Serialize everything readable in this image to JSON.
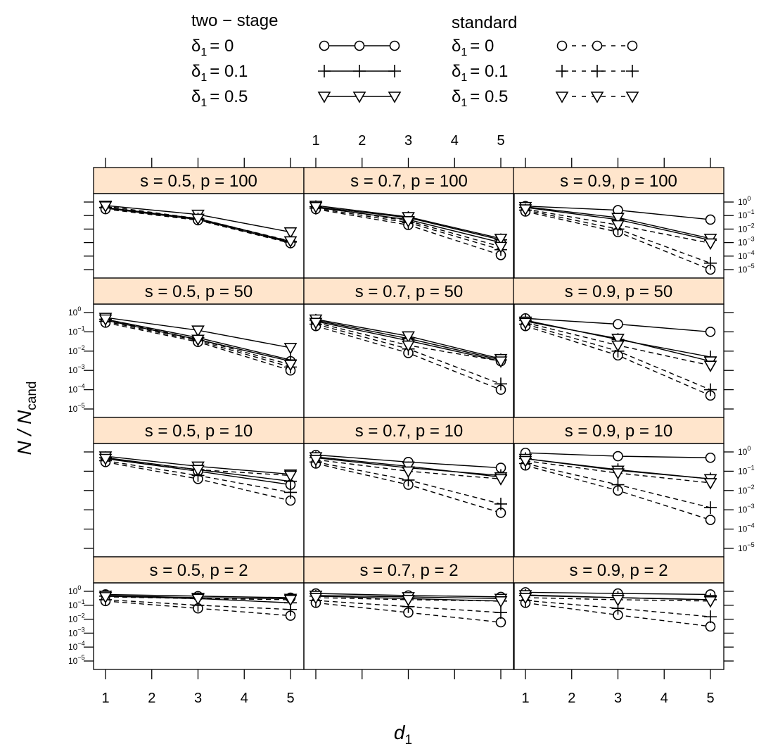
{
  "chart_data": {
    "type": "line",
    "xlabel": "d",
    "xlabel_sub": "1",
    "ylabel": "N / N",
    "ylabel_sub": "cand",
    "y_scale": "log10",
    "ylim_log10": [
      -5,
      0
    ],
    "xlim": [
      1,
      5
    ],
    "x_ticks": [
      1,
      2,
      3,
      4,
      5
    ],
    "y_tick_exponents": [
      0,
      -1,
      -2,
      -3,
      -4,
      -5
    ],
    "y_tick_base": "10",
    "x": [
      1,
      3,
      5
    ],
    "legend": {
      "headers": [
        "two − stage",
        "standard"
      ],
      "entries": [
        {
          "label": "δ",
          "sub": "1",
          "value": "= 0",
          "marker": "circle",
          "method": "two-stage",
          "style": "solid"
        },
        {
          "label": "δ",
          "sub": "1",
          "value": "= 0.1",
          "marker": "plus",
          "method": "two-stage",
          "style": "solid"
        },
        {
          "label": "δ",
          "sub": "1",
          "value": "= 0.5",
          "marker": "triangle-down",
          "method": "two-stage",
          "style": "solid"
        },
        {
          "label": "δ",
          "sub": "1",
          "value": "= 0",
          "marker": "circle",
          "method": "standard",
          "style": "dashed"
        },
        {
          "label": "δ",
          "sub": "1",
          "value": "= 0.1",
          "marker": "plus",
          "method": "standard",
          "style": "dashed"
        },
        {
          "label": "δ",
          "sub": "1",
          "value": "= 0.5",
          "marker": "triangle-down",
          "method": "standard",
          "style": "dashed"
        }
      ]
    },
    "colors": {
      "strip": "#ffe5cc",
      "line": "#000000"
    },
    "panels": [
      {
        "title": "s = 0.5, p = 100",
        "series": [
          {
            "method": "two-stage",
            "delta": 0,
            "marker": "circle",
            "values": [
              0.35,
              0.05,
              0.001
            ]
          },
          {
            "method": "two-stage",
            "delta": 0.1,
            "marker": "plus",
            "values": [
              0.4,
              0.06,
              0.0012
            ]
          },
          {
            "method": "two-stage",
            "delta": 0.5,
            "marker": "triangle-down",
            "values": [
              0.55,
              0.12,
              0.006
            ]
          },
          {
            "method": "standard",
            "delta": 0,
            "marker": "circle",
            "values": [
              0.3,
              0.045,
              0.0009
            ]
          },
          {
            "method": "standard",
            "delta": 0.1,
            "marker": "plus",
            "values": [
              0.38,
              0.055,
              0.0011
            ]
          },
          {
            "method": "standard",
            "delta": 0.5,
            "marker": "triangle-down",
            "values": [
              0.5,
              0.06,
              0.0013
            ]
          }
        ]
      },
      {
        "title": "s = 0.7, p = 100",
        "series": [
          {
            "method": "two-stage",
            "delta": 0,
            "marker": "circle",
            "values": [
              0.4,
              0.05,
              0.001
            ]
          },
          {
            "method": "two-stage",
            "delta": 0.1,
            "marker": "plus",
            "values": [
              0.45,
              0.07,
              0.0016
            ]
          },
          {
            "method": "two-stage",
            "delta": 0.5,
            "marker": "triangle-down",
            "values": [
              0.55,
              0.08,
              0.002
            ]
          },
          {
            "method": "standard",
            "delta": 0,
            "marker": "circle",
            "values": [
              0.3,
              0.02,
              0.00012
            ]
          },
          {
            "method": "standard",
            "delta": 0.1,
            "marker": "plus",
            "values": [
              0.35,
              0.03,
              0.0003
            ]
          },
          {
            "method": "standard",
            "delta": 0.5,
            "marker": "triangle-down",
            "values": [
              0.45,
              0.04,
              0.0005
            ]
          }
        ]
      },
      {
        "title": "s = 0.9, p = 100",
        "series": [
          {
            "method": "two-stage",
            "delta": 0,
            "marker": "circle",
            "values": [
              0.5,
              0.25,
              0.05
            ]
          },
          {
            "method": "two-stage",
            "delta": 0.1,
            "marker": "plus",
            "values": [
              0.4,
              0.05,
              0.0015
            ]
          },
          {
            "method": "two-stage",
            "delta": 0.5,
            "marker": "triangle-down",
            "values": [
              0.45,
              0.07,
              0.002
            ]
          },
          {
            "method": "standard",
            "delta": 0,
            "marker": "circle",
            "values": [
              0.2,
              0.006,
              1e-05
            ]
          },
          {
            "method": "standard",
            "delta": 0.1,
            "marker": "plus",
            "values": [
              0.25,
              0.01,
              3e-05
            ]
          },
          {
            "method": "standard",
            "delta": 0.5,
            "marker": "triangle-down",
            "values": [
              0.3,
              0.02,
              0.0009
            ]
          }
        ]
      },
      {
        "title": "s = 0.5, p = 50",
        "series": [
          {
            "method": "two-stage",
            "delta": 0,
            "marker": "circle",
            "values": [
              0.4,
              0.04,
              0.003
            ]
          },
          {
            "method": "two-stage",
            "delta": 0.1,
            "marker": "plus",
            "values": [
              0.45,
              0.05,
              0.0035
            ]
          },
          {
            "method": "two-stage",
            "delta": 0.5,
            "marker": "triangle-down",
            "values": [
              0.55,
              0.12,
              0.015
            ]
          },
          {
            "method": "standard",
            "delta": 0,
            "marker": "circle",
            "values": [
              0.3,
              0.03,
              0.001
            ]
          },
          {
            "method": "standard",
            "delta": 0.1,
            "marker": "plus",
            "values": [
              0.35,
              0.035,
              0.0015
            ]
          },
          {
            "method": "standard",
            "delta": 0.5,
            "marker": "triangle-down",
            "values": [
              0.45,
              0.04,
              0.002
            ]
          }
        ]
      },
      {
        "title": "s = 0.7, p = 50",
        "series": [
          {
            "method": "two-stage",
            "delta": 0,
            "marker": "circle",
            "values": [
              0.35,
              0.035,
              0.003
            ]
          },
          {
            "method": "two-stage",
            "delta": 0.1,
            "marker": "plus",
            "values": [
              0.4,
              0.045,
              0.0035
            ]
          },
          {
            "method": "two-stage",
            "delta": 0.5,
            "marker": "triangle-down",
            "values": [
              0.45,
              0.06,
              0.004
            ]
          },
          {
            "method": "standard",
            "delta": 0,
            "marker": "circle",
            "values": [
              0.2,
              0.008,
              0.0001
            ]
          },
          {
            "method": "standard",
            "delta": 0.1,
            "marker": "plus",
            "values": [
              0.25,
              0.013,
              0.0002
            ]
          },
          {
            "method": "standard",
            "delta": 0.5,
            "marker": "triangle-down",
            "values": [
              0.3,
              0.02,
              0.003
            ]
          }
        ]
      },
      {
        "title": "s = 0.9, p = 50",
        "series": [
          {
            "method": "two-stage",
            "delta": 0,
            "marker": "circle",
            "values": [
              0.5,
              0.25,
              0.1
            ]
          },
          {
            "method": "two-stage",
            "delta": 0.1,
            "marker": "plus",
            "values": [
              0.4,
              0.04,
              0.005
            ]
          },
          {
            "method": "two-stage",
            "delta": 0.5,
            "marker": "triangle-down",
            "values": [
              0.35,
              0.045,
              0.003
            ]
          },
          {
            "method": "standard",
            "delta": 0,
            "marker": "circle",
            "values": [
              0.2,
              0.006,
              5e-05
            ]
          },
          {
            "method": "standard",
            "delta": 0.1,
            "marker": "plus",
            "values": [
              0.25,
              0.01,
              0.0001
            ]
          },
          {
            "method": "standard",
            "delta": 0.5,
            "marker": "triangle-down",
            "values": [
              0.3,
              0.02,
              0.0018
            ]
          }
        ]
      },
      {
        "title": "s = 0.5, p = 10",
        "series": [
          {
            "method": "two-stage",
            "delta": 0,
            "marker": "circle",
            "values": [
              0.45,
              0.1,
              0.02
            ]
          },
          {
            "method": "two-stage",
            "delta": 0.1,
            "marker": "plus",
            "values": [
              0.5,
              0.12,
              0.03
            ]
          },
          {
            "method": "two-stage",
            "delta": 0.5,
            "marker": "triangle-down",
            "values": [
              0.6,
              0.18,
              0.07
            ]
          },
          {
            "method": "standard",
            "delta": 0,
            "marker": "circle",
            "values": [
              0.3,
              0.04,
              0.003
            ]
          },
          {
            "method": "standard",
            "delta": 0.1,
            "marker": "plus",
            "values": [
              0.35,
              0.06,
              0.008
            ]
          },
          {
            "method": "standard",
            "delta": 0.5,
            "marker": "triangle-down",
            "values": [
              0.45,
              0.12,
              0.06
            ]
          }
        ]
      },
      {
        "title": "s = 0.7, p = 10",
        "series": [
          {
            "method": "two-stage",
            "delta": 0,
            "marker": "circle",
            "values": [
              0.7,
              0.3,
              0.15
            ]
          },
          {
            "method": "two-stage",
            "delta": 0.1,
            "marker": "plus",
            "values": [
              0.5,
              0.15,
              0.06
            ]
          },
          {
            "method": "two-stage",
            "delta": 0.5,
            "marker": "triangle-down",
            "values": [
              0.55,
              0.18,
              0.05
            ]
          },
          {
            "method": "standard",
            "delta": 0,
            "marker": "circle",
            "values": [
              0.25,
              0.02,
              0.0007
            ]
          },
          {
            "method": "standard",
            "delta": 0.1,
            "marker": "plus",
            "values": [
              0.3,
              0.035,
              0.002
            ]
          },
          {
            "method": "standard",
            "delta": 0.5,
            "marker": "triangle-down",
            "values": [
              0.4,
              0.1,
              0.04
            ]
          }
        ]
      },
      {
        "title": "s = 0.9, p = 10",
        "series": [
          {
            "method": "two-stage",
            "delta": 0,
            "marker": "circle",
            "values": [
              0.9,
              0.6,
              0.5
            ]
          },
          {
            "method": "two-stage",
            "delta": 0.1,
            "marker": "plus",
            "values": [
              0.45,
              0.12,
              0.04
            ]
          },
          {
            "method": "two-stage",
            "delta": 0.5,
            "marker": "triangle-down",
            "values": [
              0.45,
              0.11,
              0.04
            ]
          },
          {
            "method": "standard",
            "delta": 0,
            "marker": "circle",
            "values": [
              0.2,
              0.01,
              0.0003
            ]
          },
          {
            "method": "standard",
            "delta": 0.1,
            "marker": "plus",
            "values": [
              0.25,
              0.02,
              0.0013
            ]
          },
          {
            "method": "standard",
            "delta": 0.5,
            "marker": "triangle-down",
            "values": [
              0.35,
              0.08,
              0.025
            ]
          }
        ]
      },
      {
        "title": "s = 0.5, p = 2",
        "series": [
          {
            "method": "two-stage",
            "delta": 0,
            "marker": "circle",
            "values": [
              0.6,
              0.45,
              0.35
            ]
          },
          {
            "method": "two-stage",
            "delta": 0.1,
            "marker": "plus",
            "values": [
              0.45,
              0.3,
              0.15
            ]
          },
          {
            "method": "two-stage",
            "delta": 0.5,
            "marker": "triangle-down",
            "values": [
              0.5,
              0.35,
              0.3
            ]
          },
          {
            "method": "standard",
            "delta": 0,
            "marker": "circle",
            "values": [
              0.2,
              0.06,
              0.018
            ]
          },
          {
            "method": "standard",
            "delta": 0.1,
            "marker": "plus",
            "values": [
              0.25,
              0.1,
              0.05
            ]
          },
          {
            "method": "standard",
            "delta": 0.5,
            "marker": "triangle-down",
            "values": [
              0.4,
              0.3,
              0.25
            ]
          }
        ]
      },
      {
        "title": "s = 0.7, p = 2",
        "series": [
          {
            "method": "two-stage",
            "delta": 0,
            "marker": "circle",
            "values": [
              0.7,
              0.5,
              0.4
            ]
          },
          {
            "method": "two-stage",
            "delta": 0.1,
            "marker": "plus",
            "values": [
              0.45,
              0.3,
              0.2
            ]
          },
          {
            "method": "two-stage",
            "delta": 0.5,
            "marker": "triangle-down",
            "values": [
              0.5,
              0.4,
              0.3
            ]
          },
          {
            "method": "standard",
            "delta": 0,
            "marker": "circle",
            "values": [
              0.15,
              0.03,
              0.006
            ]
          },
          {
            "method": "standard",
            "delta": 0.1,
            "marker": "plus",
            "values": [
              0.22,
              0.08,
              0.03
            ]
          },
          {
            "method": "standard",
            "delta": 0.5,
            "marker": "triangle-down",
            "values": [
              0.35,
              0.25,
              0.2
            ]
          }
        ]
      },
      {
        "title": "s = 0.9, p = 2",
        "series": [
          {
            "method": "two-stage",
            "delta": 0,
            "marker": "circle",
            "values": [
              0.85,
              0.7,
              0.6
            ]
          },
          {
            "method": "two-stage",
            "delta": 0.1,
            "marker": "plus",
            "values": [
              0.5,
              0.35,
              0.25
            ]
          },
          {
            "method": "two-stage",
            "delta": 0.5,
            "marker": "triangle-down",
            "values": [
              0.55,
              0.35,
              0.25
            ]
          },
          {
            "method": "standard",
            "delta": 0,
            "marker": "circle",
            "values": [
              0.15,
              0.02,
              0.003
            ]
          },
          {
            "method": "standard",
            "delta": 0.1,
            "marker": "plus",
            "values": [
              0.22,
              0.06,
              0.015
            ]
          },
          {
            "method": "standard",
            "delta": 0.5,
            "marker": "triangle-down",
            "values": [
              0.35,
              0.25,
              0.2
            ]
          }
        ]
      }
    ]
  }
}
